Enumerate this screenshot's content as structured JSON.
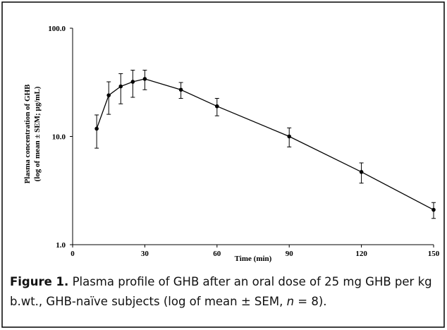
{
  "chart_data": {
    "type": "line",
    "y_label": "Plasma concentration of GHB",
    "y_label_2": "(log of mean ± SEM; µg/mL)",
    "x_label": "Time (min)",
    "x": [
      10,
      15,
      20,
      25,
      30,
      45,
      60,
      90,
      120,
      150
    ],
    "series": [
      {
        "values": [
          11.8,
          24,
          29,
          32,
          34,
          27,
          19,
          10,
          4.7,
          2.1
        ],
        "errors": [
          4,
          8,
          9,
          9,
          7,
          4.5,
          3.5,
          2,
          1,
          0.35
        ],
        "color": "#000000"
      }
    ],
    "xlim": [
      0,
      150
    ],
    "xticks": [
      0,
      30,
      60,
      90,
      120,
      150
    ],
    "ylim": [
      1,
      100
    ],
    "log_y": true,
    "yticks": [
      {
        "value": 1,
        "label": "1.0"
      },
      {
        "value": 10,
        "label": "10.0"
      },
      {
        "value": 100,
        "label": "100.0"
      }
    ]
  },
  "caption": {
    "label": "Figure 1.",
    "text_before": "Plasma profile of GHB after an oral dose of 25 mg GHB per kg b.wt., GHB-naïve subjects (log of mean ± SEM, ",
    "n": "n",
    "text_after": " = 8)."
  }
}
